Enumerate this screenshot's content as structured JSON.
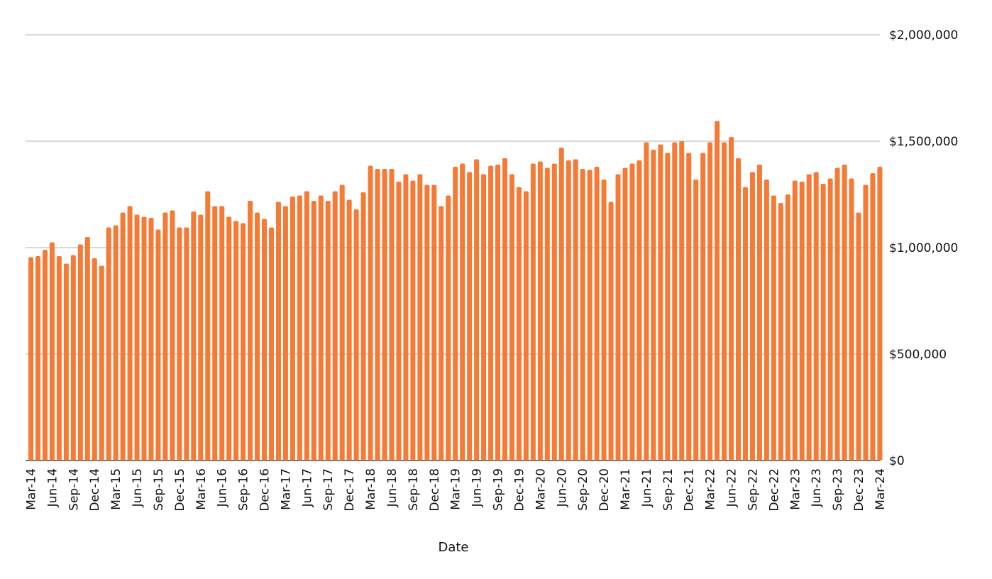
{
  "chart_data": {
    "type": "bar",
    "title": "",
    "xlabel": "Date",
    "ylabel": "",
    "ylim": [
      0,
      2000000
    ],
    "y_ticks": [
      {
        "value": 0,
        "label": "$0"
      },
      {
        "value": 500000,
        "label": "$500,000"
      },
      {
        "value": 1000000,
        "label": "$1,000,000"
      },
      {
        "value": 1500000,
        "label": "$1,500,000"
      },
      {
        "value": 2000000,
        "label": "$2,000,000"
      }
    ],
    "y_axis_side": "right",
    "grid": "horizontal",
    "bar_color": "#F47A35",
    "grid_color": "#CCCCCC",
    "categories": [
      "Mar-14",
      "Apr-14",
      "May-14",
      "Jun-14",
      "Jul-14",
      "Aug-14",
      "Sep-14",
      "Oct-14",
      "Nov-14",
      "Dec-14",
      "Jan-15",
      "Feb-15",
      "Mar-15",
      "Apr-15",
      "May-15",
      "Jun-15",
      "Jul-15",
      "Aug-15",
      "Sep-15",
      "Oct-15",
      "Nov-15",
      "Dec-15",
      "Jan-16",
      "Feb-16",
      "Mar-16",
      "Apr-16",
      "May-16",
      "Jun-16",
      "Jul-16",
      "Aug-16",
      "Sep-16",
      "Oct-16",
      "Nov-16",
      "Dec-16",
      "Jan-17",
      "Feb-17",
      "Mar-17",
      "Apr-17",
      "May-17",
      "Jun-17",
      "Jul-17",
      "Aug-17",
      "Sep-17",
      "Oct-17",
      "Nov-17",
      "Dec-17",
      "Jan-18",
      "Feb-18",
      "Mar-18",
      "Apr-18",
      "May-18",
      "Jun-18",
      "Jul-18",
      "Aug-18",
      "Sep-18",
      "Oct-18",
      "Nov-18",
      "Dec-18",
      "Jan-19",
      "Feb-19",
      "Mar-19",
      "Apr-19",
      "May-19",
      "Jun-19",
      "Jul-19",
      "Aug-19",
      "Sep-19",
      "Oct-19",
      "Nov-19",
      "Dec-19",
      "Jan-20",
      "Feb-20",
      "Mar-20",
      "Apr-20",
      "May-20",
      "Jun-20",
      "Jul-20",
      "Aug-20",
      "Sep-20",
      "Oct-20",
      "Nov-20",
      "Dec-20",
      "Jan-21",
      "Feb-21",
      "Mar-21",
      "Apr-21",
      "May-21",
      "Jun-21",
      "Jul-21",
      "Aug-21",
      "Sep-21",
      "Oct-21",
      "Nov-21",
      "Dec-21",
      "Jan-22",
      "Feb-22",
      "Mar-22",
      "Apr-22",
      "May-22",
      "Jun-22",
      "Jul-22",
      "Aug-22",
      "Sep-22",
      "Oct-22",
      "Nov-22",
      "Dec-22",
      "Jan-23",
      "Feb-23",
      "Mar-23",
      "Apr-23",
      "May-23",
      "Jun-23",
      "Jul-23",
      "Aug-23",
      "Sep-23",
      "Oct-23",
      "Nov-23",
      "Dec-23",
      "Jan-24",
      "Feb-24",
      "Mar-24"
    ],
    "tick_labels": [
      "Mar-14",
      "Jun-14",
      "Sep-14",
      "Dec-14",
      "Mar-15",
      "Jun-15",
      "Sep-15",
      "Dec-15",
      "Mar-16",
      "Jun-16",
      "Sep-16",
      "Dec-16",
      "Mar-17",
      "Jun-17",
      "Sep-17",
      "Dec-17",
      "Mar-18",
      "Jun-18",
      "Sep-18",
      "Dec-18",
      "Mar-19",
      "Jun-19",
      "Sep-19",
      "Dec-19",
      "Mar-20",
      "Jun-20",
      "Sep-20",
      "Dec-20",
      "Mar-21",
      "Jun-21",
      "Sep-21",
      "Dec-21",
      "Mar-22",
      "Jun-22",
      "Sep-22",
      "Dec-22",
      "Mar-23",
      "Jun-23",
      "Sep-23",
      "Dec-23",
      "Mar-24"
    ],
    "values": [
      955000,
      960000,
      990000,
      1025000,
      960000,
      925000,
      965000,
      1015000,
      1050000,
      950000,
      915000,
      1095000,
      1105000,
      1165000,
      1195000,
      1155000,
      1145000,
      1140000,
      1085000,
      1165000,
      1175000,
      1095000,
      1095000,
      1170000,
      1155000,
      1265000,
      1195000,
      1195000,
      1145000,
      1125000,
      1115000,
      1220000,
      1165000,
      1135000,
      1095000,
      1215000,
      1195000,
      1240000,
      1245000,
      1265000,
      1220000,
      1245000,
      1220000,
      1265000,
      1295000,
      1225000,
      1180000,
      1260000,
      1385000,
      1370000,
      1370000,
      1370000,
      1310000,
      1345000,
      1315000,
      1345000,
      1295000,
      1295000,
      1195000,
      1245000,
      1380000,
      1395000,
      1355000,
      1415000,
      1345000,
      1385000,
      1390000,
      1420000,
      1345000,
      1285000,
      1265000,
      1395000,
      1405000,
      1375000,
      1395000,
      1470000,
      1410000,
      1415000,
      1370000,
      1365000,
      1380000,
      1320000,
      1215000,
      1345000,
      1375000,
      1395000,
      1410000,
      1495000,
      1460000,
      1485000,
      1445000,
      1495000,
      1500000,
      1445000,
      1320000,
      1445000,
      1495000,
      1595000,
      1495000,
      1520000,
      1420000,
      1285000,
      1355000,
      1390000,
      1320000,
      1245000,
      1210000,
      1250000,
      1315000,
      1310000,
      1345000,
      1355000,
      1300000,
      1325000,
      1375000,
      1390000,
      1325000,
      1165000,
      1295000,
      1350000,
      1380000
    ]
  }
}
